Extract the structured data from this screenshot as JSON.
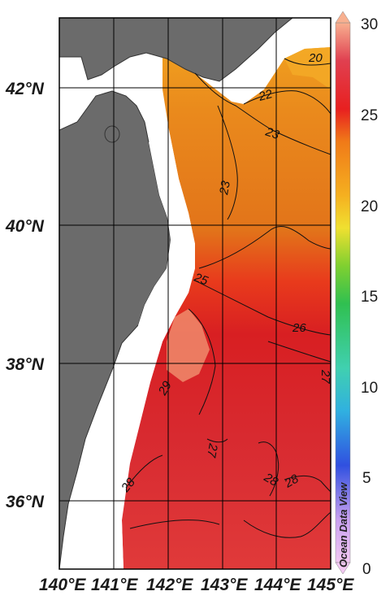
{
  "map": {
    "lon_ticks": [
      "140°E",
      "141°E",
      "142°E",
      "143°E",
      "144°E",
      "145°E"
    ],
    "lat_ticks": [
      "36°N",
      "38°N",
      "40°N",
      "42°N"
    ],
    "contour_labels": [
      "20",
      "22",
      "23",
      "23",
      "25",
      "26",
      "29",
      "27",
      "28",
      "28",
      "27"
    ]
  },
  "colorbar": {
    "ticks": [
      "0",
      "5",
      "10",
      "15",
      "20",
      "25",
      "30"
    ],
    "watermark": "Ocean Data View"
  },
  "colors": {
    "land": "#6b6b6b",
    "ocean_cool": "#f5a623",
    "ocean_mid": "#e8721a",
    "ocean_warm": "#e02020",
    "ocean_hot": "#f08a6a"
  }
}
